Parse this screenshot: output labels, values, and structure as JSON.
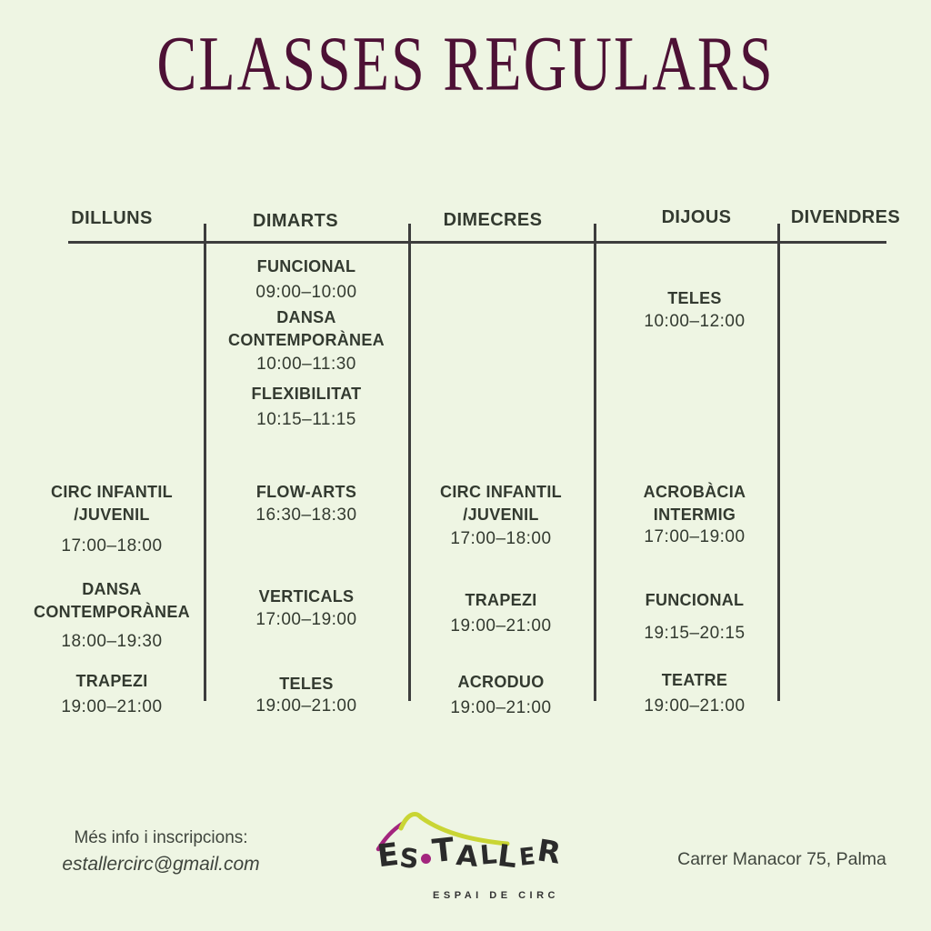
{
  "title": "CLASSES REGULARS",
  "colors": {
    "background": "#eef5e3",
    "title": "#4d1135",
    "text": "#333a30",
    "rule": "#3d3d3d",
    "logo_ink": "#2b2b2b",
    "logo_magenta": "#a3257e",
    "logo_green": "#c9d534"
  },
  "schedule": {
    "days": [
      {
        "label": "DILLUNS",
        "items": [
          {
            "name": "CIRC INFANTIL\n/JUVENIL",
            "time": "17:00–18:00"
          },
          {
            "name": "DANSA\nCONTEMPORÀNEA",
            "time": "18:00–19:30"
          },
          {
            "name": "TRAPEZI",
            "time": "19:00–21:00"
          }
        ]
      },
      {
        "label": "DIMARTS",
        "items": [
          {
            "name": "FUNCIONAL",
            "time": "09:00–10:00"
          },
          {
            "name": "DANSA\nCONTEMPORÀNEA",
            "time": "10:00–11:30"
          },
          {
            "name": "FLEXIBILITAT",
            "time": "10:15–11:15"
          },
          {
            "name": "FLOW-ARTS",
            "time": "16:30–18:30"
          },
          {
            "name": "VERTICALS",
            "time": "17:00–19:00"
          },
          {
            "name": "TELES",
            "time": "19:00–21:00"
          }
        ]
      },
      {
        "label": "DIMECRES",
        "items": [
          {
            "name": "CIRC INFANTIL\n/JUVENIL",
            "time": "17:00–18:00"
          },
          {
            "name": "TRAPEZI",
            "time": "19:00–21:00"
          },
          {
            "name": "ACRODUO",
            "time": "19:00–21:00"
          }
        ]
      },
      {
        "label": "DIJOUS",
        "items": [
          {
            "name": "TELES",
            "time": "10:00–12:00"
          },
          {
            "name": "ACROBÀCIA\nINTERMIG",
            "time": "17:00–19:00"
          },
          {
            "name": "FUNCIONAL",
            "time": "19:15–20:15"
          },
          {
            "name": "TEATRE",
            "time": "19:00–21:00"
          }
        ]
      },
      {
        "label": "DIVENDRES",
        "items": []
      }
    ]
  },
  "footer": {
    "info_line1": "Més info i inscripcions:",
    "email": "estallercirc@gmail.com",
    "address": "Carrer Manacor 75, Palma",
    "logo": {
      "name": "ES·TALLER",
      "tagline": "ESPAI DE CIRC",
      "tent_swoosh_icon": "circus-tent-swoosh",
      "accent_stroke_icon": "magenta-accent-stroke"
    }
  }
}
